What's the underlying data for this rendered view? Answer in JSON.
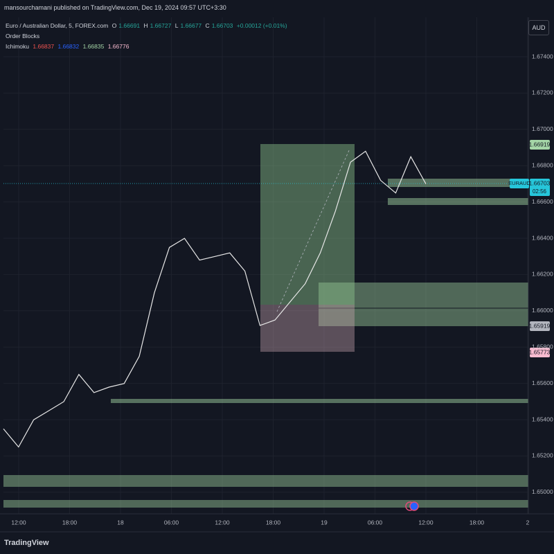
{
  "header": {
    "published": "mansourchamani published on TradingView.com, Dec 19, 2024 09:57 UTC+3:30",
    "currency": "AUD"
  },
  "legend": {
    "symbol": "Euro / Australian Dollar, 5, FOREX.com",
    "open_label": "O",
    "open": "1.66691",
    "high_label": "H",
    "high": "1.66727",
    "low_label": "L",
    "low": "1.66677",
    "close_label": "C",
    "close": "1.66703",
    "change": "+0.00012 (+0.01%)",
    "indicators": [
      "Order Blocks",
      "Ichimoku"
    ],
    "ichimoku_values": [
      "1.66837",
      "1.66832",
      "1.66835",
      "1.66776"
    ]
  },
  "price_axis": [
    "1.67400",
    "1.67200",
    "1.67000",
    "1.66800",
    "1.66600",
    "1.66400",
    "1.66200",
    "1.66000",
    "1.65800",
    "1.65600",
    "1.65400",
    "1.65200",
    "1.65000"
  ],
  "time_axis": [
    "12:00",
    "18:00",
    "18",
    "06:00",
    "12:00",
    "18:00",
    "19",
    "06:00",
    "12:00",
    "18:00",
    "2"
  ],
  "price_tags": {
    "ichimoku": "1.66919",
    "symbol": "EURAUD",
    "last": "1.66703",
    "countdown": "02:56",
    "zone": "1.65919",
    "stop": "1.65773"
  },
  "price_series": [
    1.6535,
    1.6525,
    1.654,
    1.6545,
    1.655,
    1.6565,
    1.6555,
    1.6558,
    1.656,
    1.6575,
    1.661,
    1.6635,
    1.664,
    1.6628,
    1.663,
    1.6632,
    1.6622,
    1.6592,
    1.6595,
    1.6605,
    1.6615,
    1.6632,
    1.6655,
    1.6682,
    1.6688,
    1.6672,
    1.6665,
    1.6685,
    1.667
  ],
  "footer": {
    "logo": "TradingView"
  }
}
